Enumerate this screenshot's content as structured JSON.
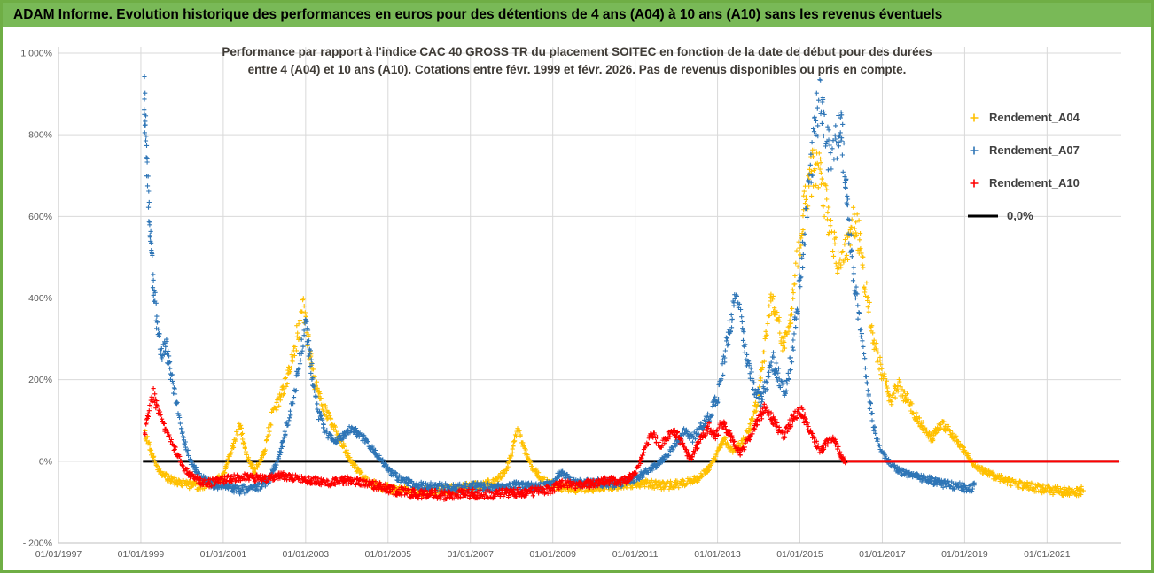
{
  "header": {
    "title": "ADAM Informe. Evolution historique des performances en euros pour des détentions de 4 ans (A04) à 10 ans (A10) sans les revenus éventuels"
  },
  "chart_data": {
    "type": "scatter",
    "title_line1": "Performance par rapport à l'indice CAC 40 GROSS TR  du placement SOITEC en fonction de la date de début pour des durées",
    "title_line2": "entre 4 (A04) et 10 ans (A10). Cotations entre févr. 1999 et févr. 2026.  Pas de revenus disponibles ou pris en compte.",
    "background": "#FFFFFF",
    "grid_color": "#D9D9D9",
    "axis_color": "#BFBFBF",
    "label_color": "#595959",
    "x_axis": {
      "range": [
        1997,
        2022.8
      ],
      "ticks": [
        {
          "year": 1997,
          "label": "01/01/1997"
        },
        {
          "year": 1999,
          "label": "01/01/1999"
        },
        {
          "year": 2001,
          "label": "01/01/2001"
        },
        {
          "year": 2003,
          "label": "01/01/2003"
        },
        {
          "year": 2005,
          "label": "01/01/2005"
        },
        {
          "year": 2007,
          "label": "01/01/2007"
        },
        {
          "year": 2009,
          "label": "01/01/2009"
        },
        {
          "year": 2011,
          "label": "01/01/2011"
        },
        {
          "year": 2013,
          "label": "01/01/2013"
        },
        {
          "year": 2015,
          "label": "01/01/2015"
        },
        {
          "year": 2017,
          "label": "01/01/2017"
        },
        {
          "year": 2019,
          "label": "01/01/2019"
        },
        {
          "year": 2021,
          "label": "01/01/2021"
        }
      ]
    },
    "y_axis": {
      "range": [
        -200,
        1000
      ],
      "unit": "%",
      "ticks": [
        {
          "value": 1000,
          "label": "1 000%"
        },
        {
          "value": 800,
          "label": "800%"
        },
        {
          "value": 600,
          "label": "600%"
        },
        {
          "value": 400,
          "label": "400%"
        },
        {
          "value": 200,
          "label": "200%"
        },
        {
          "value": 0,
          "label": "0%"
        },
        {
          "value": -200,
          "label": "- 200%"
        }
      ]
    },
    "legend": [
      {
        "label": "Rendement_A04",
        "color": "#FFC000",
        "marker": "plus"
      },
      {
        "label": "Rendement_A07",
        "color": "#2E75B6",
        "marker": "plus"
      },
      {
        "label": "Rendement_A10",
        "color": "#FF0000",
        "marker": "plus"
      },
      {
        "label": "0,0%",
        "color": "#000000",
        "marker": "line"
      }
    ],
    "zero_line": {
      "value": 0,
      "color": "#000000",
      "from": 1999.05,
      "to": 2022.75
    },
    "series": [
      {
        "name": "Rendement_A04",
        "color": "#FFC000",
        "anchors": [
          [
            1999.1,
            70
          ],
          [
            1999.25,
            20
          ],
          [
            1999.45,
            -25
          ],
          [
            1999.7,
            -45
          ],
          [
            2000.0,
            -55
          ],
          [
            2000.4,
            -62
          ],
          [
            2000.8,
            -50
          ],
          [
            2001.0,
            -35
          ],
          [
            2001.25,
            40
          ],
          [
            2001.4,
            95
          ],
          [
            2001.55,
            20
          ],
          [
            2001.75,
            -25
          ],
          [
            2002.0,
            25
          ],
          [
            2002.2,
            120
          ],
          [
            2002.45,
            170
          ],
          [
            2002.65,
            250
          ],
          [
            2002.85,
            330
          ],
          [
            2002.95,
            375
          ],
          [
            2003.05,
            300
          ],
          [
            2003.2,
            200
          ],
          [
            2003.35,
            150
          ],
          [
            2003.5,
            120
          ],
          [
            2003.7,
            80
          ],
          [
            2003.9,
            40
          ],
          [
            2004.1,
            0
          ],
          [
            2004.35,
            -35
          ],
          [
            2004.6,
            -55
          ],
          [
            2004.9,
            -65
          ],
          [
            2005.3,
            -72
          ],
          [
            2005.8,
            -75
          ],
          [
            2006.3,
            -70
          ],
          [
            2006.8,
            -65
          ],
          [
            2007.2,
            -60
          ],
          [
            2007.6,
            -50
          ],
          [
            2007.85,
            -25
          ],
          [
            2008.0,
            20
          ],
          [
            2008.15,
            80
          ],
          [
            2008.3,
            30
          ],
          [
            2008.5,
            -15
          ],
          [
            2008.75,
            -45
          ],
          [
            2009.0,
            -60
          ],
          [
            2009.4,
            -68
          ],
          [
            2009.9,
            -65
          ],
          [
            2010.4,
            -60
          ],
          [
            2010.9,
            -58
          ],
          [
            2011.3,
            -55
          ],
          [
            2011.7,
            -60
          ],
          [
            2012.1,
            -55
          ],
          [
            2012.5,
            -45
          ],
          [
            2012.8,
            -15
          ],
          [
            2013.0,
            20
          ],
          [
            2013.15,
            55
          ],
          [
            2013.35,
            25
          ],
          [
            2013.6,
            45
          ],
          [
            2013.8,
            90
          ],
          [
            2014.0,
            160
          ],
          [
            2014.15,
            280
          ],
          [
            2014.3,
            400
          ],
          [
            2014.45,
            340
          ],
          [
            2014.6,
            290
          ],
          [
            2014.75,
            340
          ],
          [
            2014.9,
            460
          ],
          [
            2015.05,
            580
          ],
          [
            2015.2,
            670
          ],
          [
            2015.35,
            730
          ],
          [
            2015.5,
            690
          ],
          [
            2015.65,
            620
          ],
          [
            2015.8,
            545
          ],
          [
            2015.95,
            480
          ],
          [
            2016.1,
            510
          ],
          [
            2016.3,
            590
          ],
          [
            2016.45,
            545
          ],
          [
            2016.6,
            430
          ],
          [
            2016.75,
            320
          ],
          [
            2016.9,
            250
          ],
          [
            2017.05,
            200
          ],
          [
            2017.2,
            150
          ],
          [
            2017.4,
            185
          ],
          [
            2017.6,
            150
          ],
          [
            2017.8,
            115
          ],
          [
            2018.0,
            85
          ],
          [
            2018.2,
            55
          ],
          [
            2018.45,
            95
          ],
          [
            2018.65,
            70
          ],
          [
            2018.85,
            45
          ],
          [
            2019.0,
            25
          ],
          [
            2019.2,
            -5
          ],
          [
            2019.45,
            -25
          ],
          [
            2019.7,
            -35
          ],
          [
            2020.0,
            -48
          ],
          [
            2020.4,
            -58
          ],
          [
            2020.8,
            -66
          ],
          [
            2021.2,
            -72
          ],
          [
            2021.6,
            -78
          ],
          [
            2021.9,
            -72
          ]
        ]
      },
      {
        "name": "Rendement_A07",
        "color": "#2E75B6",
        "anchors": [
          [
            1999.08,
            920
          ],
          [
            1999.12,
            780
          ],
          [
            1999.18,
            640
          ],
          [
            1999.25,
            520
          ],
          [
            1999.32,
            420
          ],
          [
            1999.4,
            330
          ],
          [
            1999.5,
            260
          ],
          [
            1999.6,
            285
          ],
          [
            1999.72,
            220
          ],
          [
            1999.85,
            150
          ],
          [
            2000.0,
            70
          ],
          [
            2000.2,
            0
          ],
          [
            2000.45,
            -40
          ],
          [
            2000.7,
            -55
          ],
          [
            2001.0,
            -62
          ],
          [
            2001.4,
            -70
          ],
          [
            2001.8,
            -65
          ],
          [
            2002.1,
            -50
          ],
          [
            2002.35,
            10
          ],
          [
            2002.55,
            90
          ],
          [
            2002.75,
            180
          ],
          [
            2002.9,
            280
          ],
          [
            2003.0,
            340
          ],
          [
            2003.15,
            220
          ],
          [
            2003.3,
            120
          ],
          [
            2003.5,
            70
          ],
          [
            2003.7,
            45
          ],
          [
            2003.9,
            60
          ],
          [
            2004.1,
            80
          ],
          [
            2004.3,
            65
          ],
          [
            2004.5,
            45
          ],
          [
            2004.75,
            15
          ],
          [
            2005.0,
            -20
          ],
          [
            2005.3,
            -45
          ],
          [
            2005.7,
            -58
          ],
          [
            2006.1,
            -63
          ],
          [
            2006.6,
            -66
          ],
          [
            2007.1,
            -62
          ],
          [
            2007.6,
            -65
          ],
          [
            2008.1,
            -60
          ],
          [
            2008.6,
            -64
          ],
          [
            2009.0,
            -55
          ],
          [
            2009.2,
            -25
          ],
          [
            2009.4,
            -45
          ],
          [
            2009.7,
            -55
          ],
          [
            2010.1,
            -52
          ],
          [
            2010.5,
            -56
          ],
          [
            2010.9,
            -48
          ],
          [
            2011.2,
            -30
          ],
          [
            2011.5,
            -10
          ],
          [
            2011.8,
            15
          ],
          [
            2012.0,
            45
          ],
          [
            2012.2,
            75
          ],
          [
            2012.4,
            55
          ],
          [
            2012.6,
            85
          ],
          [
            2012.8,
            110
          ],
          [
            2013.0,
            160
          ],
          [
            2013.15,
            240
          ],
          [
            2013.3,
            330
          ],
          [
            2013.45,
            410
          ],
          [
            2013.6,
            320
          ],
          [
            2013.75,
            230
          ],
          [
            2013.9,
            175
          ],
          [
            2014.05,
            150
          ],
          [
            2014.2,
            195
          ],
          [
            2014.35,
            245
          ],
          [
            2014.5,
            205
          ],
          [
            2014.65,
            170
          ],
          [
            2014.8,
            260
          ],
          [
            2014.95,
            390
          ],
          [
            2015.1,
            540
          ],
          [
            2015.25,
            700
          ],
          [
            2015.4,
            840
          ],
          [
            2015.5,
            880
          ],
          [
            2015.6,
            820
          ],
          [
            2015.7,
            760
          ],
          [
            2015.85,
            790
          ],
          [
            2016.0,
            810
          ],
          [
            2016.1,
            700
          ],
          [
            2016.2,
            560
          ],
          [
            2016.35,
            420
          ],
          [
            2016.5,
            290
          ],
          [
            2016.65,
            170
          ],
          [
            2016.8,
            80
          ],
          [
            2016.95,
            30
          ],
          [
            2017.1,
            5
          ],
          [
            2017.3,
            -15
          ],
          [
            2017.5,
            -28
          ],
          [
            2017.8,
            -38
          ],
          [
            2018.1,
            -45
          ],
          [
            2018.5,
            -55
          ],
          [
            2018.9,
            -62
          ],
          [
            2019.1,
            -66
          ],
          [
            2019.25,
            -62
          ]
        ]
      },
      {
        "name": "Rendement_A10",
        "color": "#FF0000",
        "flat_zero": {
          "from": 2016.15,
          "to": 2022.75
        },
        "anchors": [
          [
            1999.1,
            75
          ],
          [
            1999.2,
            115
          ],
          [
            1999.3,
            165
          ],
          [
            1999.42,
            120
          ],
          [
            1999.55,
            85
          ],
          [
            1999.7,
            55
          ],
          [
            1999.9,
            15
          ],
          [
            2000.1,
            -25
          ],
          [
            2000.35,
            -45
          ],
          [
            2000.6,
            -55
          ],
          [
            2000.9,
            -48
          ],
          [
            2001.2,
            -42
          ],
          [
            2001.6,
            -38
          ],
          [
            2002.0,
            -45
          ],
          [
            2002.4,
            -35
          ],
          [
            2002.8,
            -42
          ],
          [
            2003.2,
            -48
          ],
          [
            2003.6,
            -52
          ],
          [
            2004.0,
            -46
          ],
          [
            2004.4,
            -52
          ],
          [
            2004.8,
            -62
          ],
          [
            2005.2,
            -72
          ],
          [
            2005.6,
            -80
          ],
          [
            2006.0,
            -82
          ],
          [
            2006.5,
            -83
          ],
          [
            2007.0,
            -80
          ],
          [
            2007.5,
            -80
          ],
          [
            2008.0,
            -77
          ],
          [
            2008.5,
            -74
          ],
          [
            2009.0,
            -68
          ],
          [
            2009.25,
            -52
          ],
          [
            2009.5,
            -62
          ],
          [
            2009.8,
            -57
          ],
          [
            2010.1,
            -52
          ],
          [
            2010.4,
            -46
          ],
          [
            2010.7,
            -50
          ],
          [
            2011.0,
            -32
          ],
          [
            2011.15,
            5
          ],
          [
            2011.3,
            45
          ],
          [
            2011.45,
            70
          ],
          [
            2011.6,
            35
          ],
          [
            2011.75,
            55
          ],
          [
            2011.9,
            75
          ],
          [
            2012.05,
            60
          ],
          [
            2012.2,
            30
          ],
          [
            2012.35,
            5
          ],
          [
            2012.5,
            35
          ],
          [
            2012.65,
            65
          ],
          [
            2012.8,
            85
          ],
          [
            2012.95,
            60
          ],
          [
            2013.1,
            95
          ],
          [
            2013.25,
            75
          ],
          [
            2013.4,
            45
          ],
          [
            2013.55,
            20
          ],
          [
            2013.7,
            45
          ],
          [
            2013.85,
            70
          ],
          [
            2014.0,
            105
          ],
          [
            2014.15,
            130
          ],
          [
            2014.3,
            110
          ],
          [
            2014.45,
            85
          ],
          [
            2014.6,
            60
          ],
          [
            2014.75,
            90
          ],
          [
            2014.9,
            115
          ],
          [
            2015.05,
            120
          ],
          [
            2015.2,
            85
          ],
          [
            2015.35,
            50
          ],
          [
            2015.5,
            25
          ],
          [
            2015.65,
            45
          ],
          [
            2015.8,
            60
          ],
          [
            2015.95,
            25
          ],
          [
            2016.05,
            5
          ],
          [
            2016.12,
            0
          ]
        ]
      }
    ]
  }
}
